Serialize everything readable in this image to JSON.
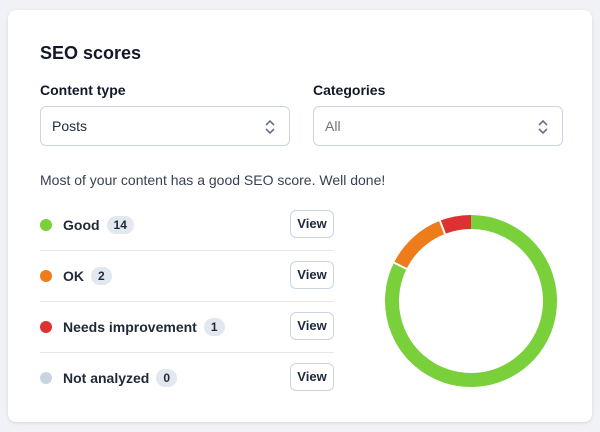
{
  "header": {
    "title": "SEO scores"
  },
  "filters": [
    {
      "label": "Content type",
      "value": "Posts"
    },
    {
      "label": "Categories",
      "value": "All"
    }
  ],
  "message": "Most of your content has a good SEO score. Well done!",
  "button_label": "View",
  "scores": [
    {
      "name": "Good",
      "count": 14,
      "color": "#7ad03a"
    },
    {
      "name": "OK",
      "count": 2,
      "color": "#ee7c1b"
    },
    {
      "name": "Needs improvement",
      "count": 1,
      "color": "#dc3232"
    },
    {
      "name": "Not analyzed",
      "count": 0,
      "color": "#c8d4e0"
    }
  ]
}
